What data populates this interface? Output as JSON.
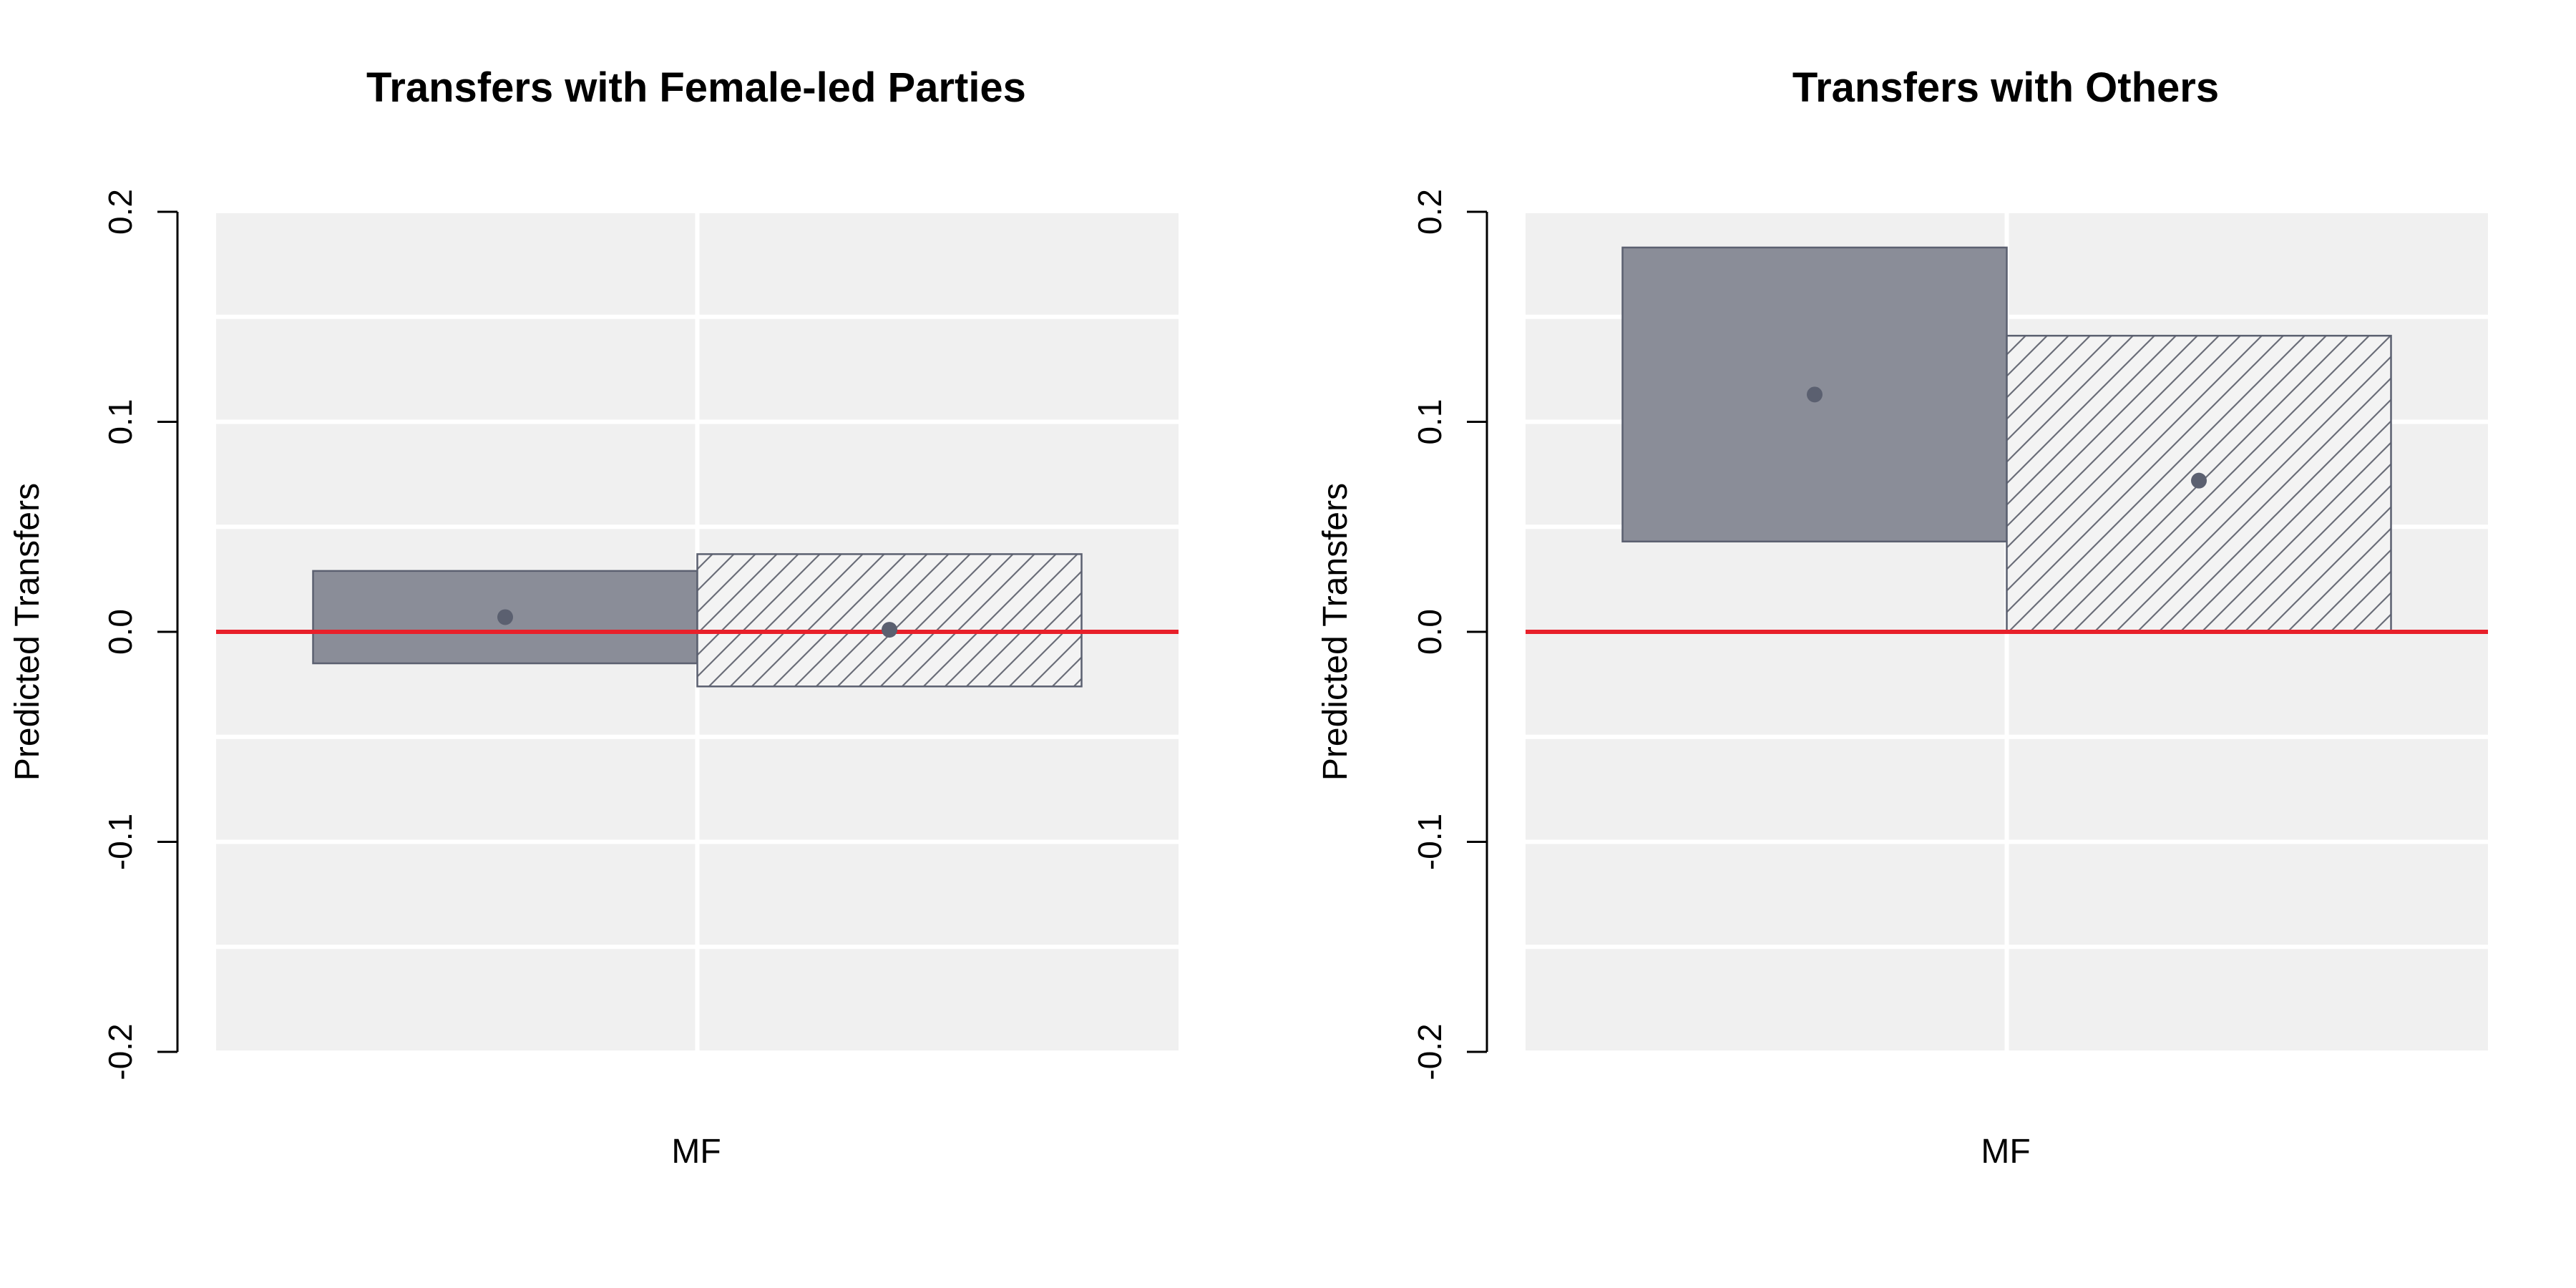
{
  "chart_data": [
    {
      "type": "bar",
      "title": "Transfers with Female-led Parties",
      "ylabel": "Predicted Transfers",
      "xlabel": "",
      "ylim": [
        -0.2,
        0.2
      ],
      "y_ticks": [
        "-0.2",
        "-0.1",
        "0.0",
        "0.1",
        "0.2"
      ],
      "categories": [
        "MF"
      ],
      "reference_line": 0.0,
      "grid": true,
      "series": [
        {
          "fill": "solid",
          "point": 0.007,
          "lower": -0.015,
          "upper": 0.029
        },
        {
          "fill": "hatched",
          "point": 0.001,
          "lower": -0.026,
          "upper": 0.037
        }
      ]
    },
    {
      "type": "bar",
      "title": "Transfers with Others",
      "ylabel": "Predicted Transfers",
      "xlabel": "",
      "ylim": [
        -0.2,
        0.2
      ],
      "y_ticks": [
        "-0.2",
        "-0.1",
        "0.0",
        "0.1",
        "0.2"
      ],
      "categories": [
        "MF"
      ],
      "reference_line": 0.0,
      "grid": true,
      "series": [
        {
          "fill": "solid",
          "point": 0.113,
          "lower": 0.043,
          "upper": 0.183
        },
        {
          "fill": "hatched",
          "point": 0.072,
          "lower": 0.0,
          "upper": 0.141
        }
      ]
    }
  ],
  "colors": {
    "panel_bg": "#f0f0f0",
    "grid": "#ffffff",
    "bar_fill": "#8a8d98",
    "bar_stroke": "#5b6070",
    "hatch_bg": "#f3f3f3",
    "hatch_line": "#6a6d78",
    "point": "#5b6070",
    "reference_line": "#e8202a",
    "axis": "#000000"
  }
}
